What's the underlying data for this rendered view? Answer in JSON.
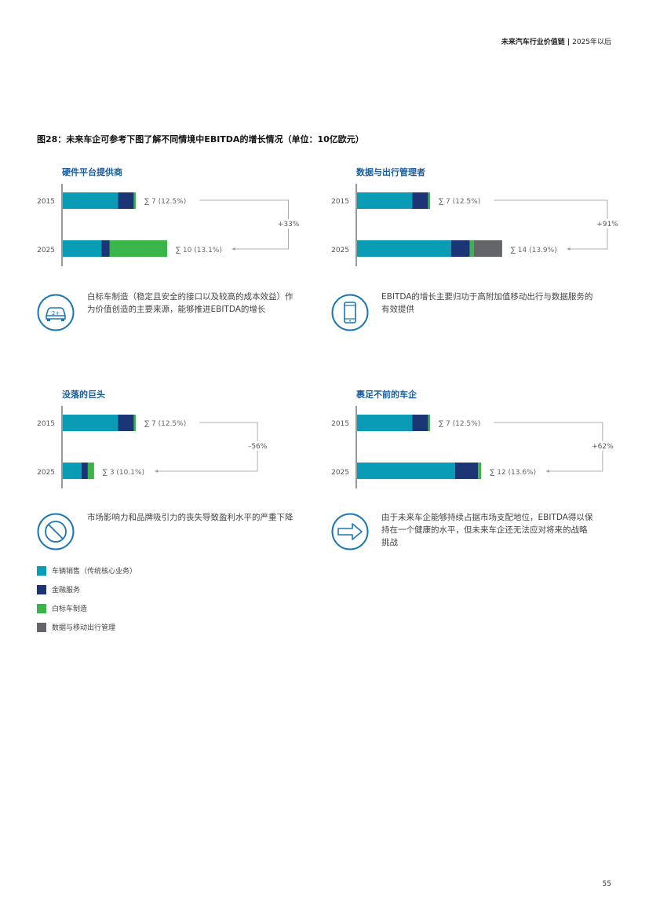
{
  "header": {
    "title": "未来汽车行业价值链",
    "separator": "|",
    "year": "2025年以后"
  },
  "figure_title": "图28：未来车企可参考下图了解不同情境中EBITDA的增长情况（单位：10亿欧元）",
  "colors": {
    "vehicle_sales": "#0a9bb5",
    "financial": "#1c3574",
    "white_label": "#3bb54a",
    "data_mobility": "#636569",
    "title_blue": "#1a5ea0",
    "icon_blue": "#1a78b4"
  },
  "legend": [
    {
      "key": "vehicle_sales",
      "label": "车辆销售（传统核心业务）"
    },
    {
      "key": "financial",
      "label": "金融服务"
    },
    {
      "key": "white_label",
      "label": "白标车制造"
    },
    {
      "key": "data_mobility",
      "label": "数据与移动出行管理"
    }
  ],
  "chart_data": [
    {
      "type": "bar",
      "orientation": "horizontal",
      "stacked": true,
      "title": "硬件平台提供商",
      "categories": [
        "2015",
        "2025"
      ],
      "series": [
        {
          "name": "车辆销售（传统核心业务）",
          "values": [
            5.3,
            3.7
          ]
        },
        {
          "name": "金融服务",
          "values": [
            1.5,
            0.8
          ]
        },
        {
          "name": "白标车制造",
          "values": [
            0.2,
            5.5
          ]
        },
        {
          "name": "数据与移动出行管理",
          "values": [
            0,
            0
          ]
        }
      ],
      "totals": [
        "∑ 7 (12.5%)",
        "∑ 10 (13.1%)"
      ],
      "change": "+33%",
      "icon": "car-icon",
      "description": "白标车制造（稳定且安全的接口以及较高的成本效益）作为价值创造的主要来源，能够推进EBITDA的增长"
    },
    {
      "type": "bar",
      "orientation": "horizontal",
      "stacked": true,
      "title": "数据与出行管理者",
      "categories": [
        "2015",
        "2025"
      ],
      "series": [
        {
          "name": "车辆销售（传统核心业务）",
          "values": [
            5.3,
            9.0
          ]
        },
        {
          "name": "金融服务",
          "values": [
            1.5,
            1.8
          ]
        },
        {
          "name": "白标车制造",
          "values": [
            0.2,
            0.4
          ]
        },
        {
          "name": "数据与移动出行管理",
          "values": [
            0,
            2.7
          ]
        }
      ],
      "totals": [
        "∑ 7 (12.5%)",
        "∑ 14 (13.9%)"
      ],
      "change": "+91%",
      "icon": "smartphone-icon",
      "description": "EBITDA的增长主要归功于高附加值移动出行与数据服务的有效提供"
    },
    {
      "type": "bar",
      "orientation": "horizontal",
      "stacked": true,
      "title": "没落的巨头",
      "categories": [
        "2015",
        "2025"
      ],
      "series": [
        {
          "name": "车辆销售（传统核心业务）",
          "values": [
            5.3,
            1.8
          ]
        },
        {
          "name": "金融服务",
          "values": [
            1.5,
            0.6
          ]
        },
        {
          "name": "白标车制造",
          "values": [
            0.2,
            0.6
          ]
        },
        {
          "name": "数据与移动出行管理",
          "values": [
            0,
            0
          ]
        }
      ],
      "totals": [
        "∑ 7 (12.5%)",
        "∑ 3 (10.1%)"
      ],
      "change": "–56%",
      "icon": "prohibited-icon",
      "description": "市场影响力和品牌吸引力的丧失导致盈利水平的严重下降"
    },
    {
      "type": "bar",
      "orientation": "horizontal",
      "stacked": true,
      "title": "裹足不前的车企",
      "categories": [
        "2015",
        "2025"
      ],
      "series": [
        {
          "name": "车辆销售（传统核心业务）",
          "values": [
            5.3,
            9.4
          ]
        },
        {
          "name": "金融服务",
          "values": [
            1.5,
            2.2
          ]
        },
        {
          "name": "白标车制造",
          "values": [
            0.2,
            0.3
          ]
        },
        {
          "name": "数据与移动出行管理",
          "values": [
            0,
            0
          ]
        }
      ],
      "totals": [
        "∑ 7 (12.5%)",
        "∑ 12 (13.6%)"
      ],
      "change": "+62%",
      "icon": "arrow-right-icon",
      "description": "由于未来车企能够持续占据市场支配地位，EBITDA得以保持在一个健康的水平，但未来车企还无法应对将来的战略挑战"
    }
  ],
  "page_number": "55"
}
